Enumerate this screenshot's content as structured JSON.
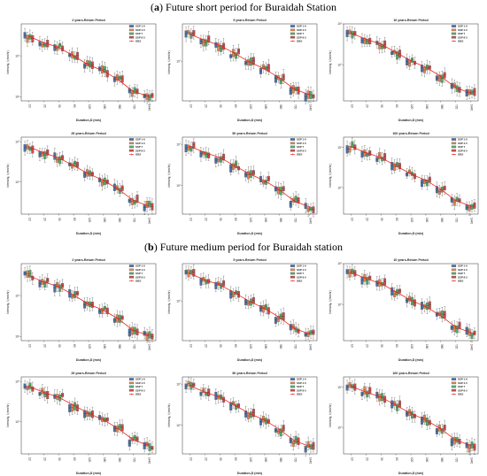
{
  "sections": [
    {
      "label": "a",
      "title": "Future short period for Buraidah Station"
    },
    {
      "label": "b",
      "title": "Future medium period for Buraidah station"
    }
  ],
  "colors": {
    "ssp126": "#4a6fa5",
    "ssp245": "#dd8452",
    "ssp370": "#55a868",
    "ssp585": "#c44e52",
    "obs": "#e8291c"
  },
  "legend": [
    "SSP 1-6",
    "SSP 4-5",
    "SSP 7",
    "SSP 8-5",
    "OBS"
  ],
  "xlabel": "Duration,D (min)",
  "ylabel": "Intensity, I (mm/hr)",
  "chart_data": [
    {
      "type": "box",
      "scale": "log",
      "title": "2 years-Return Period",
      "categories": [
        "10",
        "20",
        "30",
        "60",
        "120",
        "180",
        "360",
        "720",
        "1440"
      ],
      "obs": [
        30,
        21,
        16,
        10,
        6,
        4.3,
        2.6,
        1.35,
        1.05
      ],
      "ylim": [
        0.8,
        60
      ]
    },
    {
      "type": "box",
      "scale": "log",
      "title": "5 years-Return Period",
      "categories": [
        "10",
        "20",
        "30",
        "60",
        "120",
        "180",
        "360",
        "720",
        "1440"
      ],
      "obs": [
        45,
        32,
        24,
        15.5,
        9.5,
        6.5,
        3.9,
        2.1,
        1.55
      ],
      "ylim": [
        1.1,
        80
      ]
    },
    {
      "type": "box",
      "scale": "log",
      "title": "10 years-Return Period",
      "categories": [
        "10",
        "20",
        "30",
        "60",
        "120",
        "180",
        "360",
        "720",
        "1440"
      ],
      "obs": [
        60,
        42,
        32,
        20,
        12.5,
        8.6,
        5.2,
        2.75,
        2.0
      ],
      "ylim": [
        1.3,
        100
      ]
    },
    {
      "type": "box",
      "scale": "log",
      "title": "25 years-Return Period",
      "categories": [
        "10",
        "20",
        "30",
        "60",
        "120",
        "180",
        "360",
        "720",
        "1440"
      ],
      "obs": [
        75,
        53,
        40,
        25.5,
        16,
        11,
        6.6,
        3.5,
        2.55
      ],
      "ylim": [
        1.6,
        130
      ]
    },
    {
      "type": "box",
      "scale": "log",
      "title": "50 years-Return Period",
      "categories": [
        "10",
        "20",
        "30",
        "60",
        "120",
        "180",
        "360",
        "720",
        "1440"
      ],
      "obs": [
        90,
        63,
        48,
        30,
        19,
        13,
        7.8,
        4.1,
        3.0
      ],
      "ylim": [
        2.0,
        150
      ]
    },
    {
      "type": "box",
      "scale": "log",
      "title": "100 years-Return Period",
      "categories": [
        "10",
        "20",
        "30",
        "60",
        "120",
        "180",
        "360",
        "720",
        "1440"
      ],
      "obs": [
        105,
        74,
        56,
        35,
        22,
        15.2,
        9.1,
        4.8,
        3.5
      ],
      "ylim": [
        2.2,
        180
      ]
    },
    {
      "type": "box",
      "scale": "log",
      "title": "2 years-Return Period",
      "categories": [
        "10",
        "20",
        "30",
        "60",
        "120",
        "180",
        "360",
        "720",
        "1440"
      ],
      "obs": [
        31,
        21.5,
        16.5,
        10.3,
        6.2,
        4.4,
        2.7,
        1.4,
        1.1
      ],
      "ylim": [
        0.8,
        60
      ]
    },
    {
      "type": "box",
      "scale": "log",
      "title": "5 years-Return Period",
      "categories": [
        "10",
        "20",
        "30",
        "60",
        "120",
        "180",
        "360",
        "720",
        "1440"
      ],
      "obs": [
        46,
        32.5,
        24.5,
        15.8,
        9.7,
        6.6,
        4.0,
        2.15,
        1.6
      ],
      "ylim": [
        1.1,
        80
      ]
    },
    {
      "type": "box",
      "scale": "log",
      "title": "10 years-Return Period",
      "categories": [
        "10",
        "20",
        "30",
        "60",
        "120",
        "180",
        "360",
        "720",
        "1440"
      ],
      "obs": [
        61,
        43,
        32.5,
        20.5,
        12.7,
        8.8,
        5.3,
        2.8,
        2.05
      ],
      "ylim": [
        1.3,
        100
      ]
    },
    {
      "type": "box",
      "scale": "log",
      "title": "25 years-Return Period",
      "categories": [
        "10",
        "20",
        "30",
        "60",
        "120",
        "180",
        "360",
        "720",
        "1440"
      ],
      "obs": [
        76,
        54,
        40.5,
        26,
        16.2,
        11.2,
        6.7,
        3.55,
        2.6
      ],
      "ylim": [
        1.6,
        130
      ]
    },
    {
      "type": "box",
      "scale": "log",
      "title": "50 years-Return Period",
      "categories": [
        "10",
        "20",
        "30",
        "60",
        "120",
        "180",
        "360",
        "720",
        "1440"
      ],
      "obs": [
        91,
        64,
        48.5,
        30.5,
        19.2,
        13.2,
        7.9,
        4.15,
        3.05
      ],
      "ylim": [
        2.0,
        150
      ]
    },
    {
      "type": "box",
      "scale": "log",
      "title": "100 years-Return Period",
      "categories": [
        "10",
        "20",
        "30",
        "60",
        "120",
        "180",
        "360",
        "720",
        "1440"
      ],
      "obs": [
        106,
        75,
        57,
        35.5,
        22.3,
        15.4,
        9.2,
        4.85,
        3.55
      ],
      "ylim": [
        2.2,
        180
      ]
    }
  ]
}
